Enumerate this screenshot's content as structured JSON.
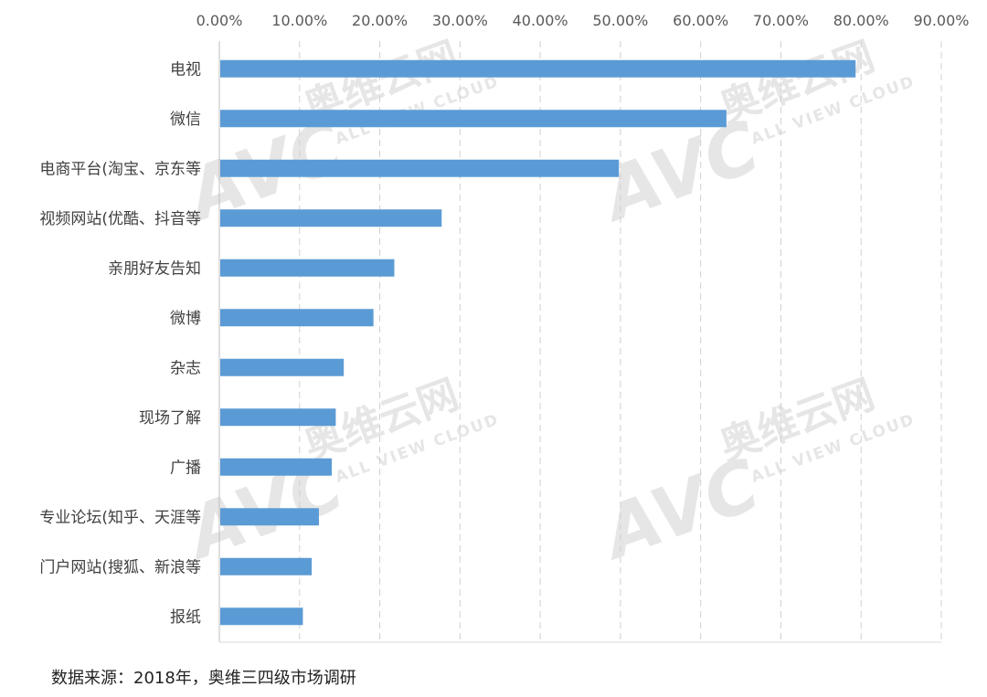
{
  "chart_data": {
    "type": "bar",
    "orientation": "horizontal",
    "categories": [
      "电视",
      "微信",
      "电商平台(淘宝、京东等",
      "视频网站(优酷、抖音等",
      "亲朋好友告知",
      "微博",
      "杂志",
      "现场了解",
      "广播",
      "专业论坛(知乎、天涯等",
      "门户网站(搜狐、新浪等",
      "报纸"
    ],
    "values": [
      79.2,
      63.1,
      49.7,
      27.6,
      21.7,
      19.1,
      15.4,
      14.4,
      13.9,
      12.3,
      11.4,
      10.3
    ],
    "xlim": [
      0,
      90
    ],
    "xticks": [
      "0.00%",
      "10.00%",
      "20.00%",
      "30.00%",
      "40.00%",
      "50.00%",
      "60.00%",
      "70.00%",
      "80.00%",
      "90.00%"
    ],
    "x_axis_position": "top",
    "grid": "vertical dashed",
    "bar_color": "#5B9BD5",
    "title": "",
    "xlabel": "",
    "ylabel": ""
  },
  "source_note": "数据来源：2018年，奥维三四级市场调研",
  "watermark": {
    "logo": "AVC",
    "brand": "奥维云网",
    "tagline": "ALL VIEW CLOUD",
    "color": "#e6e6e6"
  }
}
